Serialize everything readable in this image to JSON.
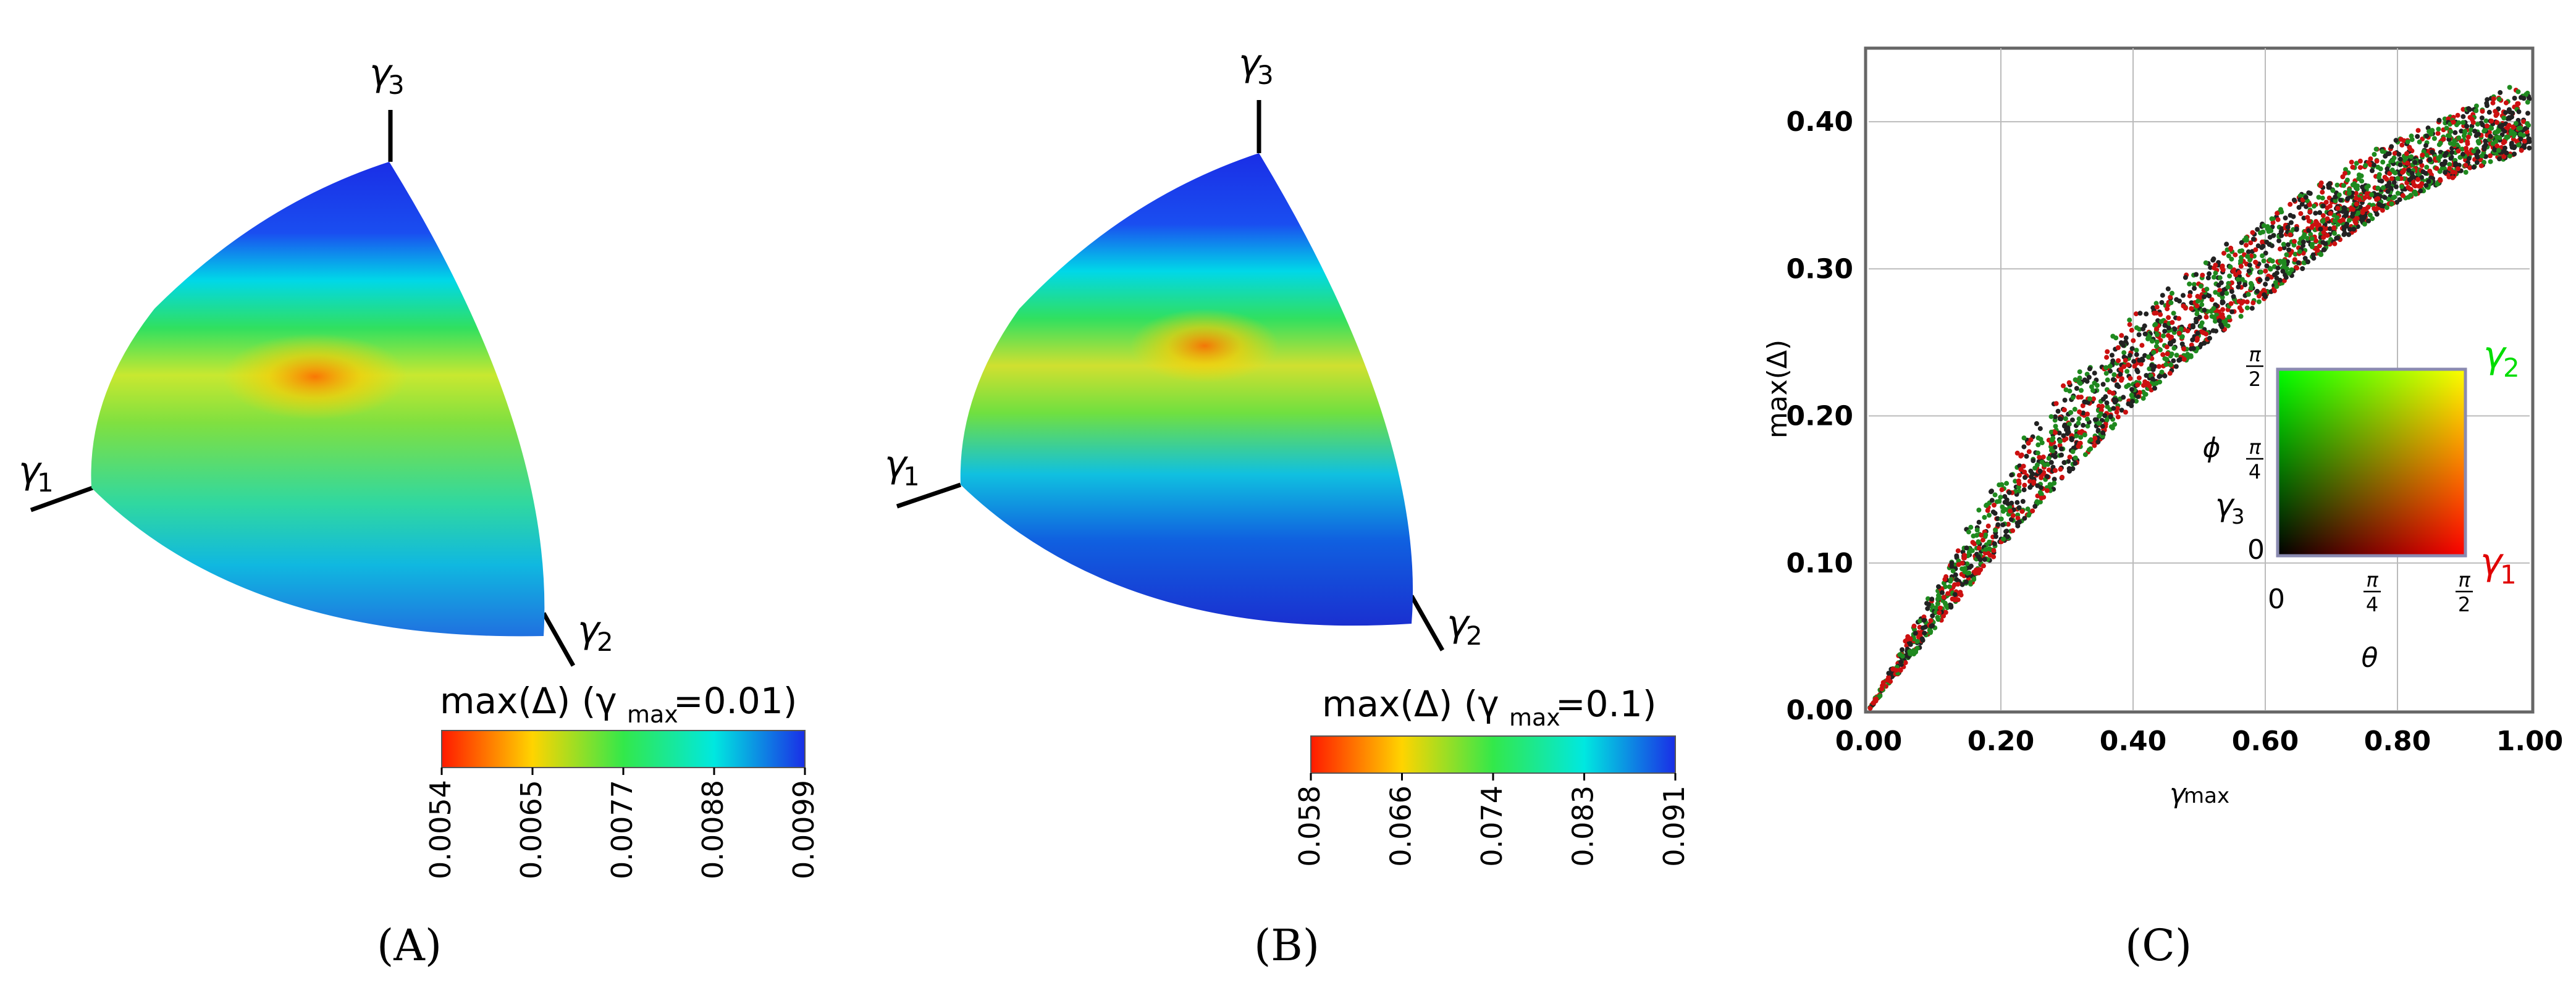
{
  "panels": {
    "A": {
      "label": "(A)",
      "gamma1": "γ",
      "gamma1_sub": "1",
      "gamma2": "γ",
      "gamma2_sub": "2",
      "gamma3": "γ",
      "gamma3_sub": "3",
      "colorbar_title_main": "max(Δ) (γ",
      "colorbar_title_sub": "max",
      "colorbar_title_tail": "=0.01)",
      "colorbar_ticks": [
        "0.0054",
        "0.0065",
        "0.0077",
        "0.0088",
        "0.0099"
      ],
      "colorbar_colors": [
        "#ff1a00",
        "#ffd400",
        "#33e84a",
        "#00e8e0",
        "#1a2ee6"
      ]
    },
    "B": {
      "label": "(B)",
      "gamma1": "γ",
      "gamma1_sub": "1",
      "gamma2": "γ",
      "gamma2_sub": "2",
      "gamma3": "γ",
      "gamma3_sub": "3",
      "colorbar_title_main": "max(Δ) (γ",
      "colorbar_title_sub": "max",
      "colorbar_title_tail": "=0.1)",
      "colorbar_ticks": [
        "0.058",
        "0.066",
        "0.074",
        "0.083",
        "0.091"
      ],
      "colorbar_colors": [
        "#ff1a00",
        "#ffd400",
        "#33e84a",
        "#00e8e0",
        "#1a2ee6"
      ]
    },
    "C": {
      "label": "(C)",
      "inset": {
        "ylabel": "ϕ",
        "xlabel": "θ",
        "x_tick_zero": "0",
        "y_tick_zero": "0",
        "pi": "π",
        "den4": "4",
        "den2": "2",
        "corner_green": "γ",
        "corner_green_sub": "2",
        "corner_red": "γ",
        "corner_red_sub": "1",
        "corner_black": "γ",
        "corner_black_sub": "3"
      }
    }
  },
  "chart_data": {
    "type": "scatter",
    "title": "",
    "xlabel": "γ",
    "xlabel_sub": "max",
    "ylabel": "max(Δ)",
    "xlim": [
      0,
      1
    ],
    "ylim": [
      0,
      0.45
    ],
    "x_ticks": [
      "0.00",
      "0.20",
      "0.40",
      "0.60",
      "0.80",
      "1.00"
    ],
    "x_tick_values": [
      0,
      0.2,
      0.4,
      0.6,
      0.8,
      1.0
    ],
    "y_ticks": [
      "0.00",
      "0.10",
      "0.20",
      "0.30",
      "0.40"
    ],
    "y_tick_values": [
      0,
      0.1,
      0.2,
      0.3,
      0.4
    ],
    "grid": true,
    "series": [
      {
        "color": "#1f8a1f",
        "upper_envelope": [
          [
            0,
            0
          ],
          [
            0.1,
            0.085
          ],
          [
            0.2,
            0.165
          ],
          [
            0.3,
            0.225
          ],
          [
            0.4,
            0.27
          ],
          [
            0.5,
            0.305
          ],
          [
            0.6,
            0.335
          ],
          [
            0.7,
            0.365
          ],
          [
            0.8,
            0.39
          ],
          [
            0.9,
            0.41
          ],
          [
            1.0,
            0.43
          ]
        ],
        "lower_envelope": [
          [
            0,
            0
          ],
          [
            0.1,
            0.055
          ],
          [
            0.2,
            0.11
          ],
          [
            0.3,
            0.16
          ],
          [
            0.4,
            0.205
          ],
          [
            0.5,
            0.245
          ],
          [
            0.6,
            0.28
          ],
          [
            0.7,
            0.315
          ],
          [
            0.8,
            0.345
          ],
          [
            0.9,
            0.365
          ],
          [
            1.0,
            0.38
          ]
        ]
      },
      {
        "color": "#cc1010"
      },
      {
        "color": "#222222"
      }
    ]
  }
}
